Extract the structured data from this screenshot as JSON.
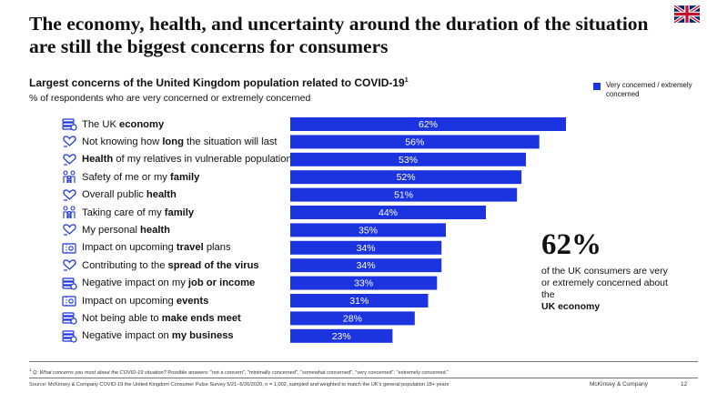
{
  "title": "The economy, health, and uncertainty around the duration of the situation are still the biggest concerns for consumers",
  "subtitle": "Largest concerns of the United Kingdom population related to COVID-19",
  "subtitle_note": "1",
  "unit_text": "% of respondents who are very concerned or extremely concerned",
  "legend": {
    "label": "Very concerned / extremely concerned",
    "color": "#1c33e0"
  },
  "chart_data": {
    "type": "bar",
    "orientation": "horizontal",
    "title": "Largest concerns of the United Kingdom population related to COVID-19",
    "xlabel": "",
    "ylabel": "",
    "xlim": [
      0,
      62
    ],
    "value_suffix": "%",
    "categories": [
      {
        "parts": [
          {
            "t": "The UK ",
            "b": false
          },
          {
            "t": "economy",
            "b": true
          }
        ],
        "icon": "money-stack-icon"
      },
      {
        "parts": [
          {
            "t": "Not knowing how ",
            "b": false
          },
          {
            "t": "long",
            "b": true
          },
          {
            "t": " the situation will last",
            "b": false
          }
        ],
        "icon": "heart-hands-icon"
      },
      {
        "parts": [
          {
            "t": "Health",
            "b": true
          },
          {
            "t": " of my relatives in vulnerable populations",
            "b": false
          }
        ],
        "icon": "heart-hands-icon"
      },
      {
        "parts": [
          {
            "t": "Safety of me or my ",
            "b": false
          },
          {
            "t": "family",
            "b": true
          }
        ],
        "icon": "family-icon"
      },
      {
        "parts": [
          {
            "t": "Overall public ",
            "b": false
          },
          {
            "t": "health",
            "b": true
          }
        ],
        "icon": "heart-hands-icon"
      },
      {
        "parts": [
          {
            "t": "Taking care of my ",
            "b": false
          },
          {
            "t": "family",
            "b": true
          }
        ],
        "icon": "family-icon"
      },
      {
        "parts": [
          {
            "t": "My personal ",
            "b": false
          },
          {
            "t": "health",
            "b": true
          }
        ],
        "icon": "heart-hands-icon"
      },
      {
        "parts": [
          {
            "t": "Impact on upcoming ",
            "b": false
          },
          {
            "t": "travel",
            "b": true
          },
          {
            "t": " plans",
            "b": false
          }
        ],
        "icon": "ticket-icon"
      },
      {
        "parts": [
          {
            "t": "Contributing to the ",
            "b": false
          },
          {
            "t": "spread of the virus",
            "b": true
          }
        ],
        "icon": "heart-hands-icon"
      },
      {
        "parts": [
          {
            "t": "Negative impact on my ",
            "b": false
          },
          {
            "t": "job or income",
            "b": true
          }
        ],
        "icon": "money-stack-icon"
      },
      {
        "parts": [
          {
            "t": "Impact on upcoming ",
            "b": false
          },
          {
            "t": "events",
            "b": true
          }
        ],
        "icon": "ticket-icon"
      },
      {
        "parts": [
          {
            "t": "Not being able to ",
            "b": false
          },
          {
            "t": "make ends meet",
            "b": true
          }
        ],
        "icon": "money-stack-icon"
      },
      {
        "parts": [
          {
            "t": "Negative impact on ",
            "b": false
          },
          {
            "t": "my business",
            "b": true
          }
        ],
        "icon": "money-stack-icon"
      }
    ],
    "values": [
      62,
      56,
      53,
      52,
      51,
      44,
      35,
      34,
      34,
      33,
      31,
      28,
      23
    ],
    "series_color": "#1c33e0"
  },
  "callout": {
    "number": "62%",
    "text": "of the UK consumers are very or extremely concerned about the",
    "bold_text": "UK economy"
  },
  "footnote": {
    "marker": "1",
    "question": "Q: What concerns you most about the COVID-19 situation?",
    "answers": " Possible answers: \"not a concern\", \"minimally concerned\", \"somewhat concerned\", \"very concerned\", \"extremely concerned.\""
  },
  "source": "Source: McKinsey & Company COVID-19 the United Kingdom Consumer Pulse Survey 5/21–5/26/2020, n = 1,002, sampled and weighted to match the UK's general population 18+ years",
  "brand": "McKinsey & Company",
  "page_number": "12"
}
